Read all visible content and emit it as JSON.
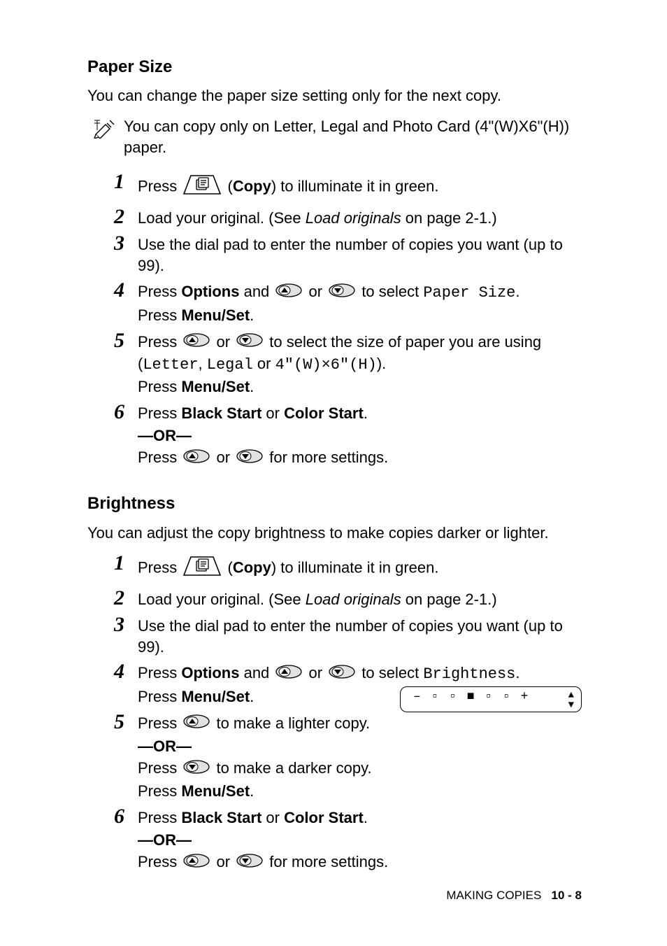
{
  "colors": {
    "text": "#000000",
    "background": "#ffffff",
    "icon_fill": "#d9d9d9",
    "icon_stroke": "#000000"
  },
  "typography": {
    "body_font": "Arial, Helvetica, sans-serif",
    "body_size_pt": 16,
    "heading_size_pt": 18,
    "heading_weight": "bold",
    "step_number_font": "Times New Roman, italic, bold",
    "step_number_size_pt": 22,
    "mono_font": "Courier New"
  },
  "paper_size": {
    "heading": "Paper Size",
    "intro": "You can change the paper size setting only for the next copy.",
    "note": "You can copy only on Letter, Legal and Photo Card (4\"(W)X6\"(H)) paper.",
    "steps": [
      {
        "n": "1",
        "parts": [
          "Press ",
          {
            "icon": "copy"
          },
          " (",
          {
            "b": "Copy"
          },
          ") to illuminate it in green."
        ]
      },
      {
        "n": "2",
        "parts": [
          "Load your original. (See ",
          {
            "i": "Load originals"
          },
          " on page 2-1.)"
        ]
      },
      {
        "n": "3",
        "parts": [
          "Use the dial pad to enter the number of copies you want (up to 99)."
        ]
      },
      {
        "n": "4",
        "parts": [
          "Press ",
          {
            "b": "Options"
          },
          " and ",
          {
            "icon": "up"
          },
          " or ",
          {
            "icon": "down"
          },
          " to select ",
          {
            "m": "Paper Size"
          },
          "."
        ],
        "lines2": [
          "Press ",
          {
            "b": "Menu/Set"
          },
          "."
        ]
      },
      {
        "n": "5",
        "parts": [
          "Press ",
          {
            "icon": "up"
          },
          " or ",
          {
            "icon": "down"
          },
          " to select the size of paper you are using (",
          {
            "m": "Letter"
          },
          ", ",
          {
            "m": "Legal"
          },
          " or ",
          {
            "m": "4\"(W)×6\"(H)"
          },
          ")."
        ],
        "lines2": [
          "Press ",
          {
            "b": "Menu/Set"
          },
          "."
        ]
      },
      {
        "n": "6",
        "parts": [
          "Press ",
          {
            "b": "Black Start"
          },
          " or ",
          {
            "b": "Color Start"
          },
          "."
        ],
        "or": "—OR—",
        "lines2": [
          "Press ",
          {
            "icon": "up"
          },
          " or ",
          {
            "icon": "down"
          },
          " for more settings."
        ]
      }
    ]
  },
  "brightness": {
    "heading": "Brightness",
    "intro": "You can adjust the copy brightness to make copies darker or lighter.",
    "lcd": {
      "minus": "–",
      "plus": "+",
      "chars": "▫▫■▫▫",
      "arrows": "◆"
    },
    "steps": [
      {
        "n": "1",
        "parts": [
          "Press ",
          {
            "icon": "copy"
          },
          " (",
          {
            "b": "Copy"
          },
          ") to illuminate it in green."
        ]
      },
      {
        "n": "2",
        "parts": [
          "Load your original. (See ",
          {
            "i": "Load originals"
          },
          " on page 2-1.)"
        ]
      },
      {
        "n": "3",
        "parts": [
          "Use the dial pad to enter the number of copies you want (up to 99)."
        ]
      },
      {
        "n": "4",
        "parts": [
          "Press ",
          {
            "b": "Options"
          },
          " and ",
          {
            "icon": "up"
          },
          " or ",
          {
            "icon": "down"
          },
          " to select ",
          {
            "m": "Brightness"
          },
          "."
        ],
        "lines2": [
          "Press ",
          {
            "b": "Menu/Set"
          },
          "."
        ],
        "lcd": true
      },
      {
        "n": "5",
        "parts": [
          "Press ",
          {
            "icon": "up"
          },
          " to make a lighter copy."
        ],
        "or": "—OR—",
        "lines2": [
          "Press ",
          {
            "icon": "down"
          },
          " to make a darker copy."
        ],
        "lines3": [
          "Press ",
          {
            "b": "Menu/Set"
          },
          "."
        ]
      },
      {
        "n": "6",
        "parts": [
          "Press ",
          {
            "b": "Black Start"
          },
          " or ",
          {
            "b": "Color Start"
          },
          "."
        ],
        "or": "—OR—",
        "lines2": [
          "Press ",
          {
            "icon": "up"
          },
          " or ",
          {
            "icon": "down"
          },
          " for more settings."
        ]
      }
    ]
  },
  "footer": {
    "label": "MAKING COPIES",
    "page": "10 - 8"
  }
}
